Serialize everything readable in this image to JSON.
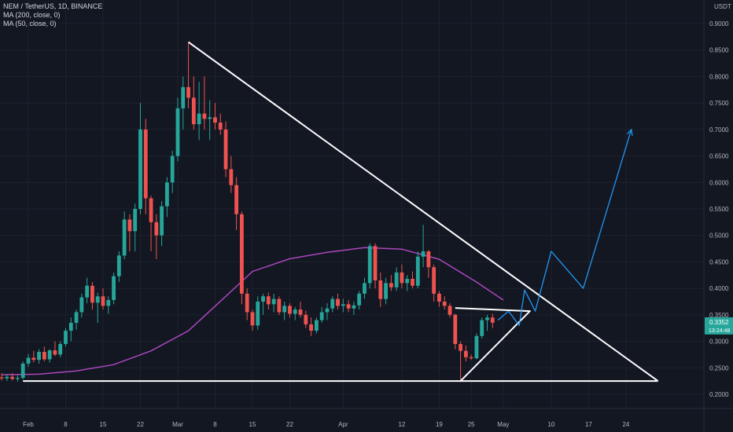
{
  "legend": {
    "symbol_line": "NEM / TetherUS, 1D, BINANCE",
    "ma200_line": "MA (200, close, 0)",
    "ma50_line": "MA (50, close, 0)"
  },
  "colors": {
    "background": "#131722",
    "up": "#26a69a",
    "down": "#ef5350",
    "ma": "#ab47bc",
    "trendline": "#ffffff",
    "projection": "#2196f3",
    "grid": "#1e222d"
  },
  "chart_data": {
    "type": "candlestick",
    "currency_label": "USDT",
    "ylim": [
      0.19,
      0.92
    ],
    "y_ticks": [
      "0.9000",
      "0.8500",
      "0.8000",
      "0.7500",
      "0.7000",
      "0.6500",
      "0.6000",
      "0.5500",
      "0.5000",
      "0.4500",
      "0.4000",
      "0.3500",
      "0.3000",
      "0.2500",
      "0.2000"
    ],
    "x_ticks": [
      {
        "label": "Feb",
        "date": "Feb 1"
      },
      {
        "label": "8",
        "date": "Feb 8"
      },
      {
        "label": "15",
        "date": "Feb 15"
      },
      {
        "label": "22",
        "date": "Feb 22"
      },
      {
        "label": "Mar",
        "date": "Mar 1"
      },
      {
        "label": "8",
        "date": "Mar 8"
      },
      {
        "label": "15",
        "date": "Mar 15"
      },
      {
        "label": "22",
        "date": "Mar 22"
      },
      {
        "label": "Apr",
        "date": "Apr 1"
      },
      {
        "label": "12",
        "date": "Apr 12"
      },
      {
        "label": "19",
        "date": "Apr 19"
      },
      {
        "label": "25",
        "date": "Apr 25"
      },
      {
        "label": "May",
        "date": "May 1"
      },
      {
        "label": "10",
        "date": "May 10"
      },
      {
        "label": "17",
        "date": "May 17"
      },
      {
        "label": "24",
        "date": "May 24"
      }
    ],
    "candles": [
      {
        "date": "Jan 27",
        "o": 0.232,
        "h": 0.24,
        "l": 0.226,
        "c": 0.23
      },
      {
        "date": "Jan 28",
        "o": 0.23,
        "h": 0.238,
        "l": 0.225,
        "c": 0.233
      },
      {
        "date": "Jan 29",
        "o": 0.233,
        "h": 0.24,
        "l": 0.226,
        "c": 0.229
      },
      {
        "date": "Jan 30",
        "o": 0.229,
        "h": 0.236,
        "l": 0.224,
        "c": 0.231
      },
      {
        "date": "Jan 31",
        "o": 0.231,
        "h": 0.262,
        "l": 0.228,
        "c": 0.258
      },
      {
        "date": "Feb 1",
        "o": 0.258,
        "h": 0.276,
        "l": 0.252,
        "c": 0.269
      },
      {
        "date": "Feb 2",
        "o": 0.269,
        "h": 0.282,
        "l": 0.26,
        "c": 0.265
      },
      {
        "date": "Feb 3",
        "o": 0.265,
        "h": 0.285,
        "l": 0.258,
        "c": 0.28
      },
      {
        "date": "Feb 4",
        "o": 0.28,
        "h": 0.29,
        "l": 0.262,
        "c": 0.266
      },
      {
        "date": "Feb 5",
        "o": 0.266,
        "h": 0.285,
        "l": 0.26,
        "c": 0.283
      },
      {
        "date": "Feb 6",
        "o": 0.283,
        "h": 0.3,
        "l": 0.272,
        "c": 0.275
      },
      {
        "date": "Feb 7",
        "o": 0.275,
        "h": 0.3,
        "l": 0.27,
        "c": 0.295
      },
      {
        "date": "Feb 8",
        "o": 0.295,
        "h": 0.325,
        "l": 0.29,
        "c": 0.32
      },
      {
        "date": "Feb 9",
        "o": 0.32,
        "h": 0.345,
        "l": 0.3,
        "c": 0.335
      },
      {
        "date": "Feb 10",
        "o": 0.335,
        "h": 0.36,
        "l": 0.322,
        "c": 0.355
      },
      {
        "date": "Feb 11",
        "o": 0.355,
        "h": 0.39,
        "l": 0.345,
        "c": 0.383
      },
      {
        "date": "Feb 12",
        "o": 0.383,
        "h": 0.42,
        "l": 0.372,
        "c": 0.405
      },
      {
        "date": "Feb 13",
        "o": 0.405,
        "h": 0.412,
        "l": 0.36,
        "c": 0.373
      },
      {
        "date": "Feb 14",
        "o": 0.373,
        "h": 0.392,
        "l": 0.335,
        "c": 0.385
      },
      {
        "date": "Feb 15",
        "o": 0.385,
        "h": 0.4,
        "l": 0.36,
        "c": 0.367
      },
      {
        "date": "Feb 16",
        "o": 0.367,
        "h": 0.385,
        "l": 0.352,
        "c": 0.378
      },
      {
        "date": "Feb 17",
        "o": 0.378,
        "h": 0.43,
        "l": 0.37,
        "c": 0.423
      },
      {
        "date": "Feb 18",
        "o": 0.423,
        "h": 0.47,
        "l": 0.412,
        "c": 0.462
      },
      {
        "date": "Feb 19",
        "o": 0.462,
        "h": 0.545,
        "l": 0.455,
        "c": 0.53
      },
      {
        "date": "Feb 20",
        "o": 0.53,
        "h": 0.54,
        "l": 0.47,
        "c": 0.508
      },
      {
        "date": "Feb 21",
        "o": 0.508,
        "h": 0.56,
        "l": 0.47,
        "c": 0.55
      },
      {
        "date": "Feb 22",
        "o": 0.55,
        "h": 0.75,
        "l": 0.54,
        "c": 0.7
      },
      {
        "date": "Feb 23",
        "o": 0.7,
        "h": 0.72,
        "l": 0.54,
        "c": 0.57
      },
      {
        "date": "Feb 24",
        "o": 0.57,
        "h": 0.575,
        "l": 0.47,
        "c": 0.525
      },
      {
        "date": "Feb 25",
        "o": 0.525,
        "h": 0.54,
        "l": 0.455,
        "c": 0.5
      },
      {
        "date": "Feb 26",
        "o": 0.5,
        "h": 0.565,
        "l": 0.48,
        "c": 0.555
      },
      {
        "date": "Feb 27",
        "o": 0.555,
        "h": 0.61,
        "l": 0.535,
        "c": 0.6
      },
      {
        "date": "Feb 28",
        "o": 0.6,
        "h": 0.66,
        "l": 0.58,
        "c": 0.65
      },
      {
        "date": "Mar 1",
        "o": 0.65,
        "h": 0.76,
        "l": 0.64,
        "c": 0.74
      },
      {
        "date": "Mar 2",
        "o": 0.74,
        "h": 0.8,
        "l": 0.7,
        "c": 0.78
      },
      {
        "date": "Mar 3",
        "o": 0.78,
        "h": 0.865,
        "l": 0.74,
        "c": 0.76
      },
      {
        "date": "Mar 4",
        "o": 0.76,
        "h": 0.8,
        "l": 0.7,
        "c": 0.71
      },
      {
        "date": "Mar 5",
        "o": 0.71,
        "h": 0.79,
        "l": 0.68,
        "c": 0.73
      },
      {
        "date": "Mar 6",
        "o": 0.73,
        "h": 0.8,
        "l": 0.7,
        "c": 0.72
      },
      {
        "date": "Mar 7",
        "o": 0.72,
        "h": 0.755,
        "l": 0.68,
        "c": 0.723
      },
      {
        "date": "Mar 8",
        "o": 0.723,
        "h": 0.75,
        "l": 0.7,
        "c": 0.713
      },
      {
        "date": "Mar 9",
        "o": 0.713,
        "h": 0.73,
        "l": 0.69,
        "c": 0.7
      },
      {
        "date": "Mar 10",
        "o": 0.7,
        "h": 0.715,
        "l": 0.61,
        "c": 0.625
      },
      {
        "date": "Mar 11",
        "o": 0.625,
        "h": 0.65,
        "l": 0.58,
        "c": 0.595
      },
      {
        "date": "Mar 12",
        "o": 0.595,
        "h": 0.61,
        "l": 0.51,
        "c": 0.54
      },
      {
        "date": "Mar 13",
        "o": 0.54,
        "h": 0.545,
        "l": 0.37,
        "c": 0.39
      },
      {
        "date": "Mar 14",
        "o": 0.39,
        "h": 0.4,
        "l": 0.34,
        "c": 0.355
      },
      {
        "date": "Mar 15",
        "o": 0.355,
        "h": 0.36,
        "l": 0.32,
        "c": 0.33
      },
      {
        "date": "Mar 16",
        "o": 0.33,
        "h": 0.385,
        "l": 0.322,
        "c": 0.375
      },
      {
        "date": "Mar 17",
        "o": 0.375,
        "h": 0.39,
        "l": 0.35,
        "c": 0.385
      },
      {
        "date": "Mar 18",
        "o": 0.385,
        "h": 0.392,
        "l": 0.36,
        "c": 0.37
      },
      {
        "date": "Mar 19",
        "o": 0.37,
        "h": 0.39,
        "l": 0.355,
        "c": 0.38
      },
      {
        "date": "Mar 20",
        "o": 0.38,
        "h": 0.385,
        "l": 0.35,
        "c": 0.355
      },
      {
        "date": "Mar 21",
        "o": 0.355,
        "h": 0.375,
        "l": 0.34,
        "c": 0.367
      },
      {
        "date": "Mar 22",
        "o": 0.367,
        "h": 0.372,
        "l": 0.345,
        "c": 0.352
      },
      {
        "date": "Mar 23",
        "o": 0.352,
        "h": 0.365,
        "l": 0.34,
        "c": 0.36
      },
      {
        "date": "Mar 24",
        "o": 0.36,
        "h": 0.375,
        "l": 0.345,
        "c": 0.35
      },
      {
        "date": "Mar 25",
        "o": 0.35,
        "h": 0.358,
        "l": 0.325,
        "c": 0.332
      },
      {
        "date": "Mar 26",
        "o": 0.332,
        "h": 0.345,
        "l": 0.31,
        "c": 0.32
      },
      {
        "date": "Mar 27",
        "o": 0.32,
        "h": 0.345,
        "l": 0.315,
        "c": 0.34
      },
      {
        "date": "Mar 28",
        "o": 0.34,
        "h": 0.365,
        "l": 0.335,
        "c": 0.355
      },
      {
        "date": "Mar 29",
        "o": 0.355,
        "h": 0.372,
        "l": 0.34,
        "c": 0.362
      },
      {
        "date": "Mar 30",
        "o": 0.362,
        "h": 0.385,
        "l": 0.355,
        "c": 0.38
      },
      {
        "date": "Mar 31",
        "o": 0.38,
        "h": 0.39,
        "l": 0.36,
        "c": 0.367
      },
      {
        "date": "Apr 1",
        "o": 0.367,
        "h": 0.38,
        "l": 0.355,
        "c": 0.37
      },
      {
        "date": "Apr 2",
        "o": 0.37,
        "h": 0.378,
        "l": 0.355,
        "c": 0.362
      },
      {
        "date": "Apr 3",
        "o": 0.362,
        "h": 0.375,
        "l": 0.35,
        "c": 0.368
      },
      {
        "date": "Apr 4",
        "o": 0.368,
        "h": 0.395,
        "l": 0.36,
        "c": 0.39
      },
      {
        "date": "Apr 5",
        "o": 0.39,
        "h": 0.42,
        "l": 0.38,
        "c": 0.41
      },
      {
        "date": "Apr 6",
        "o": 0.41,
        "h": 0.485,
        "l": 0.4,
        "c": 0.48
      },
      {
        "date": "Apr 7",
        "o": 0.48,
        "h": 0.485,
        "l": 0.4,
        "c": 0.415
      },
      {
        "date": "Apr 8",
        "o": 0.415,
        "h": 0.43,
        "l": 0.365,
        "c": 0.38
      },
      {
        "date": "Apr 9",
        "o": 0.38,
        "h": 0.42,
        "l": 0.37,
        "c": 0.41
      },
      {
        "date": "Apr 10",
        "o": 0.41,
        "h": 0.425,
        "l": 0.395,
        "c": 0.402
      },
      {
        "date": "Apr 11",
        "o": 0.402,
        "h": 0.44,
        "l": 0.395,
        "c": 0.43
      },
      {
        "date": "Apr 12",
        "o": 0.43,
        "h": 0.445,
        "l": 0.4,
        "c": 0.41
      },
      {
        "date": "Apr 13",
        "o": 0.41,
        "h": 0.425,
        "l": 0.395,
        "c": 0.418
      },
      {
        "date": "Apr 14",
        "o": 0.418,
        "h": 0.432,
        "l": 0.4,
        "c": 0.405
      },
      {
        "date": "Apr 15",
        "o": 0.405,
        "h": 0.47,
        "l": 0.4,
        "c": 0.46
      },
      {
        "date": "Apr 16",
        "o": 0.46,
        "h": 0.52,
        "l": 0.44,
        "c": 0.47
      },
      {
        "date": "Apr 17",
        "o": 0.47,
        "h": 0.472,
        "l": 0.42,
        "c": 0.44
      },
      {
        "date": "Apr 18",
        "o": 0.44,
        "h": 0.445,
        "l": 0.375,
        "c": 0.39
      },
      {
        "date": "Apr 19",
        "o": 0.39,
        "h": 0.395,
        "l": 0.365,
        "c": 0.375
      },
      {
        "date": "Apr 20",
        "o": 0.375,
        "h": 0.385,
        "l": 0.36,
        "c": 0.367
      },
      {
        "date": "Apr 21",
        "o": 0.367,
        "h": 0.372,
        "l": 0.345,
        "c": 0.35
      },
      {
        "date": "Apr 22",
        "o": 0.35,
        "h": 0.352,
        "l": 0.285,
        "c": 0.295
      },
      {
        "date": "Apr 23",
        "o": 0.295,
        "h": 0.3,
        "l": 0.225,
        "c": 0.282
      },
      {
        "date": "Apr 24",
        "o": 0.282,
        "h": 0.292,
        "l": 0.262,
        "c": 0.27
      },
      {
        "date": "Apr 25",
        "o": 0.27,
        "h": 0.275,
        "l": 0.265,
        "c": 0.268
      },
      {
        "date": "Apr 26",
        "o": 0.268,
        "h": 0.315,
        "l": 0.266,
        "c": 0.31
      },
      {
        "date": "Apr 27",
        "o": 0.31,
        "h": 0.345,
        "l": 0.305,
        "c": 0.34
      },
      {
        "date": "Apr 28",
        "o": 0.34,
        "h": 0.35,
        "l": 0.32,
        "c": 0.345
      },
      {
        "date": "Apr 29",
        "o": 0.345,
        "h": 0.352,
        "l": 0.325,
        "c": 0.3352
      }
    ],
    "ma_200": [
      {
        "date": "Jan 27",
        "value": 0.237
      },
      {
        "date": "Feb 3",
        "value": 0.238
      },
      {
        "date": "Feb 10",
        "value": 0.244
      },
      {
        "date": "Feb 17",
        "value": 0.256
      },
      {
        "date": "Feb 24",
        "value": 0.282
      },
      {
        "date": "Mar 3",
        "value": 0.32
      },
      {
        "date": "Mar 10",
        "value": 0.385
      },
      {
        "date": "Mar 15",
        "value": 0.432
      },
      {
        "date": "Mar 22",
        "value": 0.456
      },
      {
        "date": "Mar 29",
        "value": 0.468
      },
      {
        "date": "Apr 5",
        "value": 0.477
      },
      {
        "date": "Apr 12",
        "value": 0.474
      },
      {
        "date": "Apr 19",
        "value": 0.455
      },
      {
        "date": "Apr 26",
        "value": 0.412
      },
      {
        "date": "May 1",
        "value": 0.378
      }
    ],
    "current_price": "0.3352",
    "countdown": "13:24:48",
    "annotations": {
      "descending_trendline": [
        {
          "date": "Mar 3",
          "value": 0.865
        },
        {
          "date": "May 30",
          "value": 0.225
        }
      ],
      "horizontal_support": [
        {
          "date": "Jan 31",
          "value": 0.225
        },
        {
          "date": "May 30",
          "value": 0.225
        }
      ],
      "small_triangle": [
        {
          "date": "Apr 22",
          "value": 0.363
        },
        {
          "date": "May 6",
          "value": 0.357
        },
        {
          "date": "Apr 23",
          "value": 0.225
        }
      ],
      "projection_path": [
        {
          "date": "Apr 30",
          "value": 0.34
        },
        {
          "date": "May 2",
          "value": 0.357
        },
        {
          "date": "May 4",
          "value": 0.33
        },
        {
          "date": "May 5",
          "value": 0.397
        },
        {
          "date": "May 7",
          "value": 0.357
        },
        {
          "date": "May 10",
          "value": 0.47
        },
        {
          "date": "May 16",
          "value": 0.4
        },
        {
          "date": "May 25",
          "value": 0.7
        }
      ]
    }
  }
}
